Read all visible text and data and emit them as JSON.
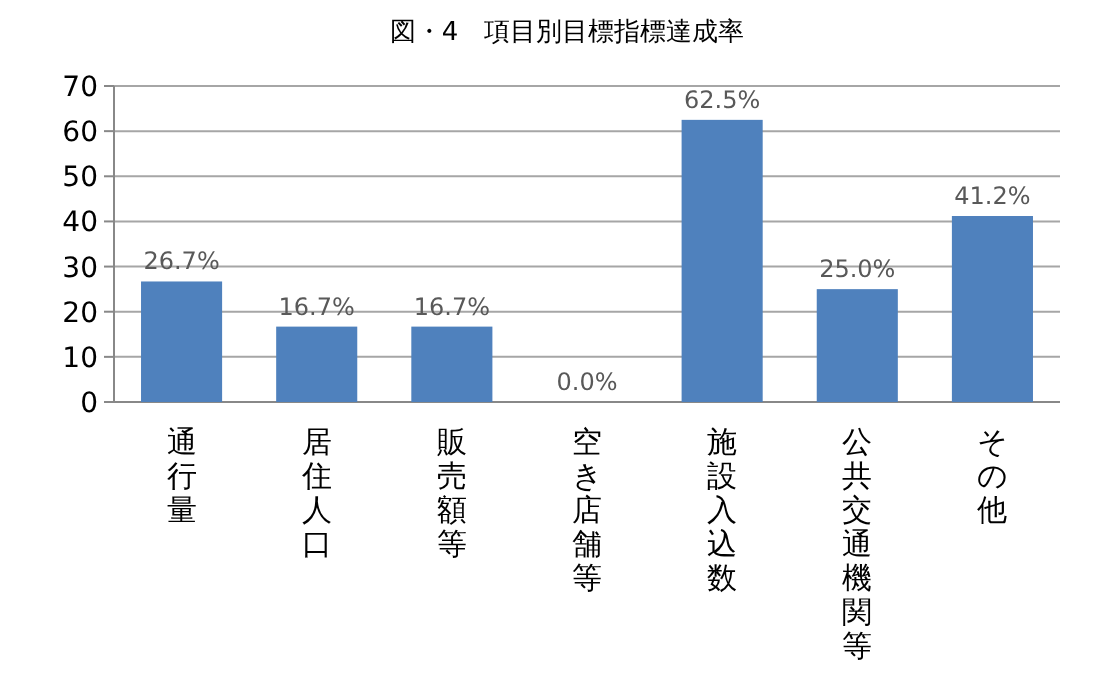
{
  "chart_data": {
    "type": "bar",
    "title": "図・4　項目別目標指標達成率",
    "categories": [
      "通行量",
      "居住人口",
      "販売額等",
      "空き店舗等",
      "施設入込数",
      "公共交通機関等",
      "その他"
    ],
    "values": [
      26.7,
      16.7,
      16.7,
      0,
      62.5,
      25.0,
      41.2
    ],
    "value_labels": [
      "26.7%",
      "16.7%",
      "16.7%",
      "0.0%",
      "62.5%",
      "25.0%",
      "41.2%"
    ],
    "color": "#4f81bd",
    "ylim": [
      0,
      70
    ],
    "yticks": [
      0,
      10,
      20,
      30,
      40,
      50,
      60,
      70
    ],
    "grid": "y"
  }
}
